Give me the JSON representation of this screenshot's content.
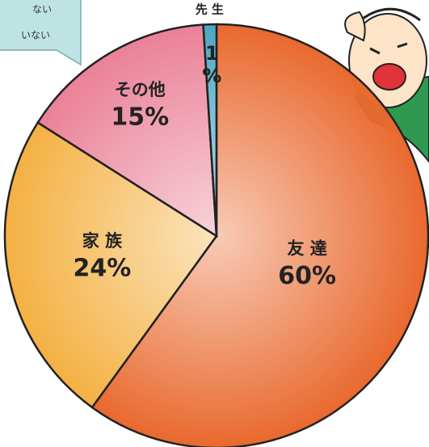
{
  "chart_data": {
    "type": "pie",
    "categories": [
      "友 達",
      "家 族",
      "その他",
      "先 生"
    ],
    "values": [
      60,
      24,
      15,
      1
    ],
    "value_labels": [
      "60%",
      "24%",
      "15%",
      "1%"
    ],
    "colors": [
      "#e9692e",
      "#f4b143",
      "#ea8198",
      "#4aa6c4"
    ],
    "start_angle": 0,
    "direction": "clockwise"
  },
  "bubble": {
    "lines": [
      "ない",
      "いない"
    ]
  }
}
